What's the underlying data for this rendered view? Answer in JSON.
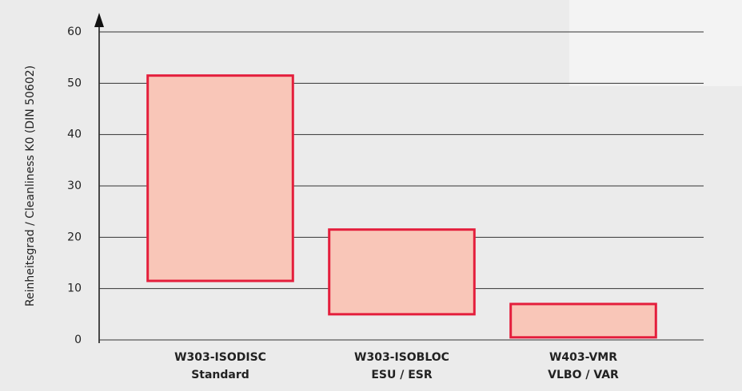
{
  "chart_data": {
    "type": "floating_bar",
    "y_axis_label": "Reinheitsgrad / Cleanliness K0 (DIN 50602)",
    "categories": [
      [
        "W303-ISODISC",
        "Standard"
      ],
      [
        "W303-ISOBLOC",
        "ESU / ESR"
      ],
      [
        "W403-VMR",
        "VLBO / VAR"
      ]
    ],
    "low": [
      11.5,
      5,
      0.5
    ],
    "high": [
      51.5,
      21.5,
      7
    ],
    "color": "#f9c6b8",
    "edge_color": "#e41e3c",
    "ylim": [
      0,
      60
    ],
    "yticks": [
      0,
      10,
      20,
      30,
      40,
      50,
      60
    ],
    "grid": true
  }
}
